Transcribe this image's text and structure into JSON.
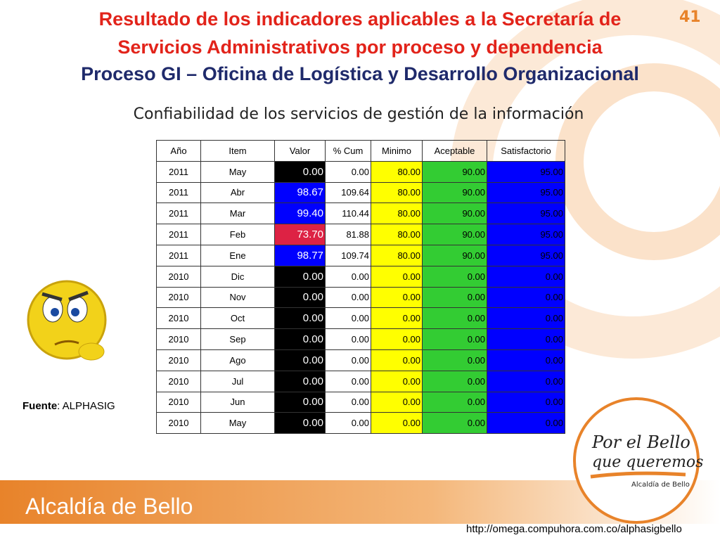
{
  "header": {
    "title_line1": "Resultado de los indicadores aplicables a la Secretaría de",
    "title_line2": "Servicios Administrativos por proceso y dependencia",
    "title_line3": "Proceso GI – Oficina de Logística y Desarrollo Organizacional",
    "page_number": "41"
  },
  "subtitle": "Confiabilidad de los servicios de gestión de la información",
  "table": {
    "columns": [
      "Año",
      "Item",
      "Valor",
      "% Cum",
      "Minimo",
      "Aceptable",
      "Satisfactorio"
    ],
    "column_colors": [
      null,
      null,
      null,
      null,
      "#ffff00",
      "#33cc33",
      "#0000ff"
    ],
    "valor_colors": [
      "#000000",
      "#0000ff",
      "#0000ff",
      "#dd2244",
      "#0000ff",
      "#000000",
      "#000000",
      "#000000",
      "#000000",
      "#000000",
      "#000000",
      "#000000",
      "#000000"
    ],
    "rows": [
      [
        "2011",
        "May",
        "0.00",
        "0.00",
        "80.00",
        "90.00",
        "95.00"
      ],
      [
        "2011",
        "Abr",
        "98.67",
        "109.64",
        "80.00",
        "90.00",
        "95.00"
      ],
      [
        "2011",
        "Mar",
        "99.40",
        "110.44",
        "80.00",
        "90.00",
        "95.00"
      ],
      [
        "2011",
        "Feb",
        "73.70",
        "81.88",
        "80.00",
        "90.00",
        "95.00"
      ],
      [
        "2011",
        "Ene",
        "98.77",
        "109.74",
        "80.00",
        "90.00",
        "95.00"
      ],
      [
        "2010",
        "Dic",
        "0.00",
        "0.00",
        "0.00",
        "0.00",
        "0.00"
      ],
      [
        "2010",
        "Nov",
        "0.00",
        "0.00",
        "0.00",
        "0.00",
        "0.00"
      ],
      [
        "2010",
        "Oct",
        "0.00",
        "0.00",
        "0.00",
        "0.00",
        "0.00"
      ],
      [
        "2010",
        "Sep",
        "0.00",
        "0.00",
        "0.00",
        "0.00",
        "0.00"
      ],
      [
        "2010",
        "Ago",
        "0.00",
        "0.00",
        "0.00",
        "0.00",
        "0.00"
      ],
      [
        "2010",
        "Jul",
        "0.00",
        "0.00",
        "0.00",
        "0.00",
        "0.00"
      ],
      [
        "2010",
        "Jun",
        "0.00",
        "0.00",
        "0.00",
        "0.00",
        "0.00"
      ],
      [
        "2010",
        "May",
        "0.00",
        "0.00",
        "0.00",
        "0.00",
        "0.00"
      ]
    ]
  },
  "source": {
    "label": "Fuente",
    "text": ": ALPHASIG"
  },
  "logo": {
    "line1": "Por el Bello",
    "line2": "que queremos",
    "line3": "Alcaldía de Bello"
  },
  "footer": {
    "brand": "Alcaldía de Bello",
    "url": "http://omega.compuhora.com.co/alphasigbello"
  }
}
